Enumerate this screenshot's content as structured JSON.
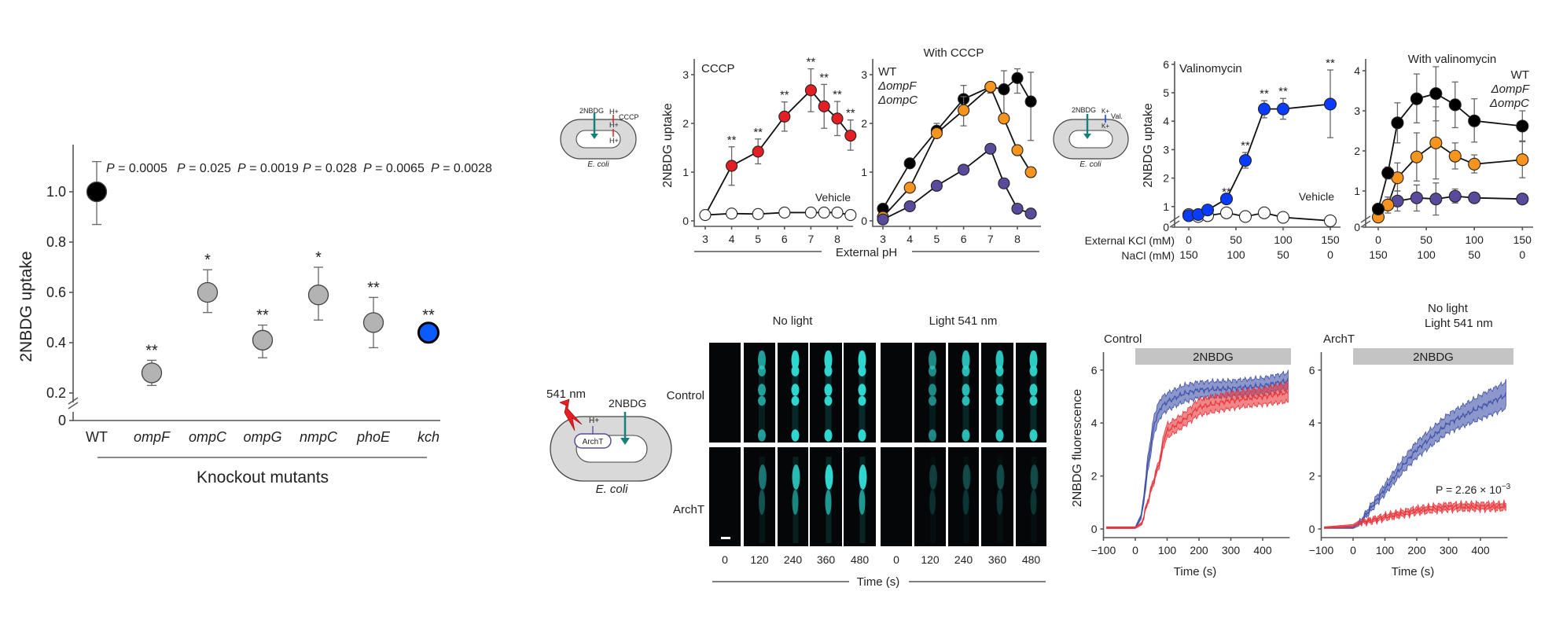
{
  "colors": {
    "red": "#e31e24",
    "valinomycin_blue": "#0a3cff",
    "orange": "#f7941d",
    "purple": "#5a4a9c",
    "teal": "#1a9a96",
    "trace_blue": "#3f51a8",
    "trace_red": "#e8353a",
    "grey_marker": "#b3b3b3",
    "bar_grey": "#c4c4c4",
    "light_header_red": "#e8353a",
    "no_light_header_blue": "#3a4ca0"
  },
  "diagrams": {
    "cccp": {
      "substrate": "2NBDG",
      "ion_top": "H+",
      "ion_mid": "H+",
      "ion_bottom": "H+",
      "drug": "CCCP",
      "organism": "E. coli"
    },
    "valinomycin": {
      "substrate": "2NBDG",
      "ion_top": "K+",
      "ion_bottom": "K+",
      "drug": "Val.",
      "organism": "E. coli"
    },
    "archt": {
      "light": "541 nm",
      "ion": "H+",
      "pump": "ArchT",
      "substrate": "2NBDG",
      "organism": "E. coli"
    }
  },
  "micrographs": {
    "conditions": [
      "No light",
      "Light 541 nm"
    ],
    "rows": [
      "Control",
      "ArchT"
    ],
    "times": [
      "0",
      "120",
      "240",
      "360",
      "480"
    ],
    "xlabel": "Time (s)"
  },
  "chart_data": [
    {
      "id": "knockout",
      "type": "scatter",
      "ylabel": "2NBDG uptake",
      "xlabel": "Knockout mutants",
      "categories": [
        "WT",
        "ompF",
        "ompC",
        "ompG",
        "nmpC",
        "phoE",
        "kch"
      ],
      "values": [
        1.0,
        0.28,
        0.6,
        0.41,
        0.59,
        0.48,
        0.44
      ],
      "err_low": [
        0.87,
        0.23,
        0.52,
        0.34,
        0.49,
        0.38,
        0.4
      ],
      "err_high": [
        1.12,
        0.33,
        0.69,
        0.47,
        0.7,
        0.58,
        0.47
      ],
      "significance": [
        "",
        "**",
        "*",
        "**",
        "*",
        "**",
        "**"
      ],
      "p_values": [
        "P = 0.0005",
        "P = 0.025",
        "P = 0.0019",
        "P = 0.028",
        "P = 0.0065",
        "P = 0.0028"
      ],
      "marker_colors": [
        "#000000",
        "#b3b3b3",
        "#b3b3b3",
        "#b3b3b3",
        "#b3b3b3",
        "#b3b3b3",
        "#0a5cff"
      ],
      "yticks": [
        "0",
        "0.2",
        "0.4",
        "0.6",
        "0.8",
        "1.0"
      ],
      "ylim": [
        0,
        1.13
      ],
      "axis_break": true
    },
    {
      "id": "cccp",
      "type": "line",
      "label": "CCCP",
      "ylabel": "2NBDG uptake",
      "xlabel": "External pH",
      "xticks": [
        3,
        4,
        5,
        6,
        7,
        8
      ],
      "yticks": [
        0,
        1,
        2,
        3
      ],
      "series": [
        {
          "name": "CCCP",
          "color": "#e31e24",
          "x": [
            4,
            5,
            6,
            7,
            7.5,
            8,
            8.5
          ],
          "y": [
            1.13,
            1.42,
            2.14,
            2.68,
            2.35,
            2.1,
            1.75
          ],
          "err_low": [
            0.73,
            1.17,
            1.84,
            2.24,
            1.9,
            1.75,
            1.45
          ],
          "err_high": [
            1.52,
            1.68,
            2.44,
            3.12,
            2.8,
            2.45,
            2.07
          ],
          "significance": [
            "**",
            "**",
            "**",
            "**",
            "**",
            "**",
            "**"
          ],
          "line_from": [
            3,
            0.12
          ]
        },
        {
          "name": "Vehicle",
          "color": "#ffffff",
          "x": [
            3,
            4,
            5,
            6,
            7,
            7.5,
            8,
            8.5
          ],
          "y": [
            0.12,
            0.15,
            0.14,
            0.17,
            0.17,
            0.17,
            0.17,
            0.12
          ]
        }
      ]
    },
    {
      "id": "cccp_strains",
      "type": "line",
      "title": "With CCCP",
      "xlabel": "External pH",
      "xticks": [
        3,
        4,
        5,
        6,
        7,
        8
      ],
      "yticks": [
        0,
        1,
        2,
        3
      ],
      "series": [
        {
          "name": "WT",
          "legend": "WT",
          "color": "#000000",
          "x": [
            3,
            4,
            5,
            6,
            7,
            7.5,
            8,
            8.5
          ],
          "y": [
            0.25,
            1.18,
            1.85,
            2.5,
            2.75,
            2.7,
            2.93,
            2.45
          ],
          "err_low": [
            0.25,
            1.18,
            1.72,
            2.22,
            2.62,
            2.1,
            2.62,
            1.65
          ],
          "err_high": [
            0.25,
            1.18,
            2.0,
            2.78,
            2.85,
            3.08,
            3.12,
            3.05
          ]
        },
        {
          "name": "ΔompF",
          "legend": "ΔompF",
          "color": "#f7941d",
          "x": [
            3,
            4,
            5,
            6,
            7,
            7.5,
            8,
            8.5
          ],
          "y": [
            0.08,
            0.68,
            1.8,
            2.27,
            2.75,
            2.1,
            1.45,
            1.0
          ],
          "err_low": [
            0.08,
            0.68,
            1.72,
            1.95,
            2.68,
            2.1,
            1.35,
            0.9
          ],
          "err_high": [
            0.08,
            0.68,
            1.88,
            2.55,
            2.82,
            2.1,
            1.55,
            1.1
          ]
        },
        {
          "name": "ΔompC",
          "legend": "ΔompC",
          "color": "#5a4a9c",
          "x": [
            3,
            4,
            5,
            6,
            7,
            7.5,
            8,
            8.5
          ],
          "y": [
            0.03,
            0.3,
            0.72,
            1.05,
            1.48,
            0.77,
            0.25,
            0.15
          ],
          "err_low": [
            0.03,
            0.3,
            0.72,
            1.05,
            1.4,
            0.77,
            0.25,
            0.15
          ],
          "err_high": [
            0.03,
            0.3,
            0.72,
            1.05,
            1.55,
            0.77,
            0.25,
            0.15
          ]
        }
      ]
    },
    {
      "id": "valinomycin",
      "type": "line",
      "label": "Valinomycin",
      "ylabel": "2NBDG uptake",
      "xlabel_kcl": "External KCl (mM)",
      "xlabel_nacl": "NaCl (mM)",
      "xticks": [
        0,
        50,
        100,
        150
      ],
      "xticks_nacl": [
        "150",
        "100",
        "50",
        "0"
      ],
      "yticks": [
        0,
        1,
        2,
        3,
        4,
        5,
        6
      ],
      "series": [
        {
          "name": "Vehicle",
          "color": "#ffffff",
          "x": [
            0,
            10,
            20,
            40,
            60,
            80,
            100,
            150
          ],
          "y": [
            0.72,
            0.65,
            0.68,
            0.78,
            0.65,
            0.78,
            0.62,
            0.5
          ]
        },
        {
          "name": "Valinomycin",
          "color": "#0a3cff",
          "x": [
            0,
            10,
            20,
            40,
            60,
            80,
            100,
            150
          ],
          "y": [
            0.68,
            0.72,
            0.88,
            1.27,
            2.62,
            4.43,
            4.43,
            4.6
          ],
          "err_low": [
            0.68,
            0.72,
            0.88,
            1.27,
            2.35,
            4.12,
            4.07,
            3.42
          ],
          "err_high": [
            0.68,
            0.72,
            0.88,
            1.27,
            2.9,
            4.72,
            4.8,
            5.8
          ],
          "significance": [
            "",
            "",
            "",
            "**",
            "**",
            "**",
            "**",
            "**"
          ]
        }
      ]
    },
    {
      "id": "valinomycin_strains",
      "type": "line",
      "title": "With valinomycin",
      "xticks": [
        0,
        50,
        100,
        150
      ],
      "xticks_nacl": [
        "150",
        "100",
        "50",
        "0"
      ],
      "yticks": [
        0,
        1,
        2,
        3,
        4
      ],
      "series": [
        {
          "name": "ΔompC",
          "legend": "ΔompC",
          "color": "#5a4a9c",
          "x": [
            20,
            40,
            60,
            80,
            100,
            150
          ],
          "y": [
            0.75,
            0.83,
            0.8,
            0.87,
            0.83,
            0.8
          ],
          "err_low": [
            0.5,
            0.5,
            0.4,
            0.7,
            0.83,
            0.8
          ],
          "err_high": [
            1.0,
            1.15,
            1.2,
            1.05,
            0.83,
            0.8
          ]
        },
        {
          "name": "ΔompF",
          "legend": "ΔompF",
          "color": "#f7941d",
          "x": [
            0,
            10,
            20,
            40,
            60,
            80,
            100,
            150
          ],
          "y": [
            0.35,
            0.65,
            1.33,
            1.85,
            2.2,
            1.87,
            1.67,
            1.78
          ],
          "err_low": [
            0.35,
            0.45,
            1.0,
            1.25,
            1.3,
            1.55,
            1.45,
            1.33
          ],
          "err_high": [
            0.35,
            0.85,
            1.7,
            2.45,
            3.1,
            2.2,
            1.9,
            2.23
          ]
        },
        {
          "name": "WT",
          "legend": "WT",
          "color": "#000000",
          "x": [
            0,
            10,
            20,
            40,
            60,
            80,
            100,
            150
          ],
          "y": [
            0.55,
            1.45,
            2.7,
            3.3,
            3.43,
            3.15,
            2.75,
            2.62
          ],
          "err_low": [
            0.55,
            1.3,
            2.2,
            2.7,
            2.75,
            2.58,
            2.22,
            2.25
          ],
          "err_high": [
            0.55,
            1.6,
            3.2,
            3.92,
            4.1,
            3.72,
            3.3,
            3.0
          ]
        }
      ]
    },
    {
      "id": "control_trace",
      "type": "area",
      "label": "Control",
      "ylabel": "2NBDG fluorescence",
      "xlabel": "Time (s)",
      "bar_label": "2NBDG",
      "xticks": [
        -100,
        0,
        100,
        200,
        300,
        400
      ],
      "yticks": [
        0,
        2,
        4,
        6
      ],
      "series": [
        {
          "name": "No light",
          "color": "#3f51a8",
          "t": [
            -90,
            0,
            20,
            40,
            60,
            80,
            100,
            150,
            200,
            300,
            400,
            480
          ],
          "mean": [
            0.05,
            0.05,
            0.5,
            2.5,
            4.0,
            4.6,
            4.8,
            5.1,
            5.25,
            5.3,
            5.4,
            5.6
          ],
          "sem": [
            0.03,
            0.03,
            0.1,
            0.3,
            0.35,
            0.35,
            0.32,
            0.32,
            0.3,
            0.3,
            0.3,
            0.3
          ]
        },
        {
          "name": "Light 541 nm",
          "color": "#e8353a",
          "t": [
            -90,
            0,
            20,
            50,
            80,
            90,
            100,
            150,
            200,
            300,
            400,
            480
          ],
          "mean": [
            0.05,
            0.05,
            0.2,
            1.5,
            2.7,
            3.4,
            3.7,
            4.1,
            4.6,
            4.85,
            5.0,
            5.15
          ],
          "sem": [
            0.03,
            0.03,
            0.05,
            0.1,
            0.15,
            0.25,
            0.25,
            0.25,
            0.3,
            0.3,
            0.3,
            0.35
          ]
        }
      ]
    },
    {
      "id": "archt_trace",
      "type": "area",
      "label": "ArchT",
      "legend": [
        "No light",
        "Light 541 nm"
      ],
      "xlabel": "Time (s)",
      "bar_label": "2NBDG",
      "p_value": "P = 2.26 × 10",
      "p_exponent": "−3",
      "xticks": [
        -100,
        0,
        100,
        200,
        300,
        400
      ],
      "yticks": [
        0,
        2,
        4,
        6
      ],
      "series": [
        {
          "name": "No light",
          "color": "#3f51a8",
          "t": [
            -90,
            0,
            20,
            50,
            100,
            150,
            200,
            300,
            400,
            480
          ],
          "mean": [
            0.05,
            0.05,
            0.2,
            0.7,
            1.5,
            2.3,
            3.0,
            4.0,
            4.6,
            5.05
          ],
          "sem": [
            0.03,
            0.03,
            0.08,
            0.12,
            0.2,
            0.25,
            0.3,
            0.35,
            0.45,
            0.5
          ]
        },
        {
          "name": "Light 541 nm",
          "color": "#e8353a",
          "t": [
            -90,
            0,
            20,
            50,
            100,
            200,
            300,
            400,
            480
          ],
          "mean": [
            0.05,
            0.12,
            0.25,
            0.3,
            0.45,
            0.7,
            0.83,
            0.85,
            0.85
          ],
          "sem": [
            0.03,
            0.05,
            0.07,
            0.08,
            0.1,
            0.12,
            0.13,
            0.13,
            0.13
          ]
        }
      ]
    }
  ]
}
